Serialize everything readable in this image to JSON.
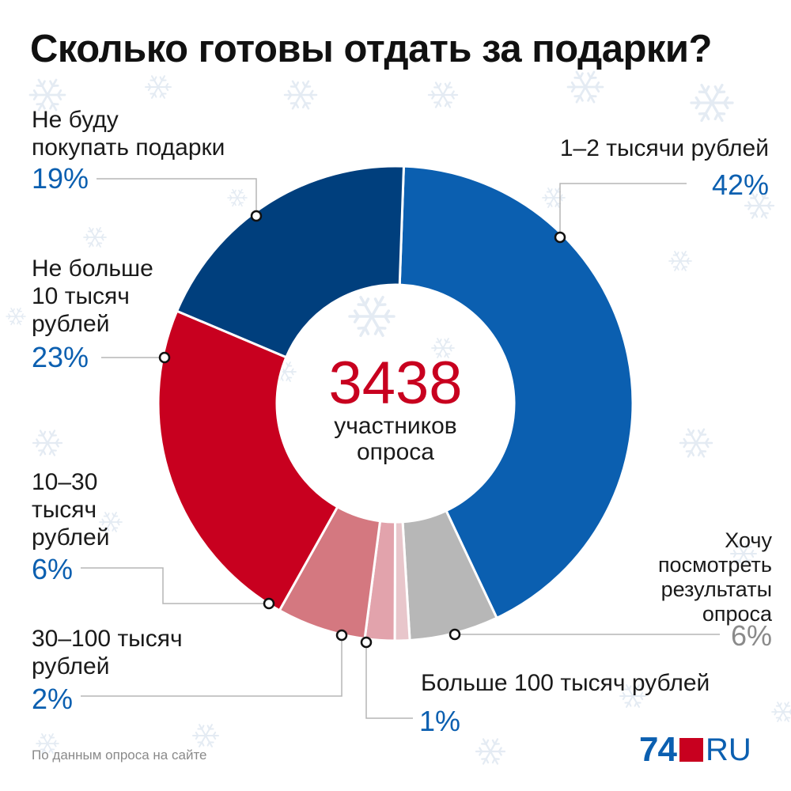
{
  "title": "Сколько готовы отдать за подарки?",
  "center": {
    "value": "3438",
    "caption": "участников\nопроса"
  },
  "source": "По данным опроса на сайте",
  "logo": {
    "number": "74",
    "suffix": "RU"
  },
  "chart_data": {
    "type": "pie",
    "donut": true,
    "title": "Сколько готовы отдать за подарки?",
    "slices": [
      {
        "label": "1–2 тысячи рублей",
        "value": 42,
        "value_label": "42%",
        "color": "#0b5fb0"
      },
      {
        "label": "Хочу\nпосмотреть\nрезультаты\nопроса",
        "value": 6,
        "value_label": "6%",
        "color": "#b7b7b7"
      },
      {
        "label": "Больше 100 тысяч рублей",
        "value": 1,
        "value_label": "1%",
        "color": "#e8c6cb"
      },
      {
        "label": "30–100 тысяч\nрублей",
        "value": 2,
        "value_label": "2%",
        "color": "#e2a3ac"
      },
      {
        "label": "10–30\nтысяч\nрублей",
        "value": 6,
        "value_label": "6%",
        "color": "#d47880"
      },
      {
        "label": "Не больше\n10 тысяч\nрублей",
        "value": 23,
        "value_label": "23%",
        "color": "#c8001f"
      },
      {
        "label": "Не буду\nпокупать подарки",
        "value": 19,
        "value_label": "19%",
        "color": "#003f7d"
      }
    ],
    "label_color": "#0b5fb0",
    "neutral_label_color": "#8a8a8a"
  }
}
